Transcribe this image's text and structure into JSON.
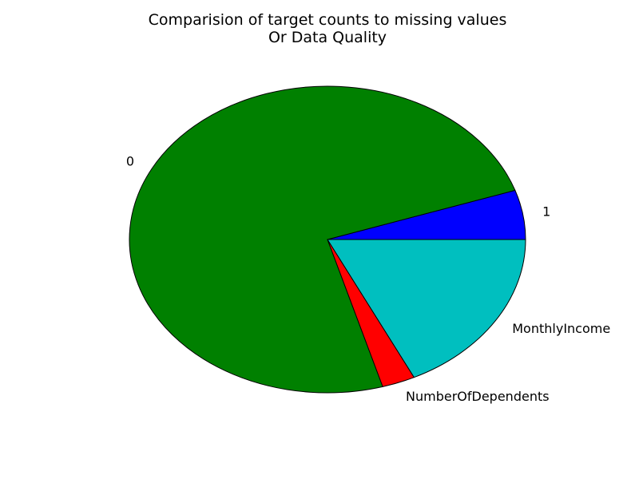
{
  "chart_data": {
    "type": "pie",
    "title_lines": [
      "Comparision of target counts to missing values",
      "Or Data Quality"
    ],
    "slices": [
      {
        "label": "1",
        "value": 5.2,
        "color": "#0000ff"
      },
      {
        "label": "0",
        "value": 74.3,
        "color": "#008000"
      },
      {
        "label": "NumberOfDependents",
        "value": 2.7,
        "color": "#ff0000"
      },
      {
        "label": "MonthlyIncome",
        "value": 17.8,
        "color": "#00bfbf"
      }
    ],
    "start_angle_deg": 0,
    "direction": "counterclockwise"
  }
}
